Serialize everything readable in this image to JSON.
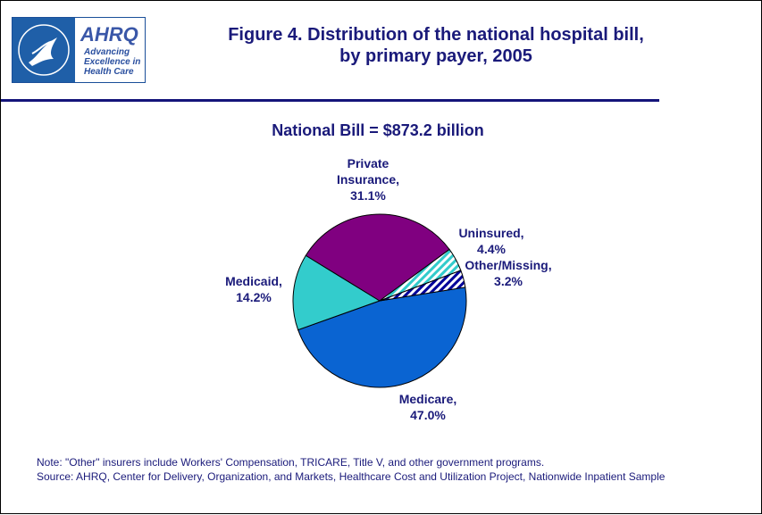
{
  "logo": {
    "name": "AHRQ",
    "tagline": [
      "Advancing",
      "Excellence in",
      "Health Care"
    ]
  },
  "chart_data": {
    "type": "pie",
    "title": [
      "Figure 4. Distribution of the national hospital bill,",
      "by primary payer, 2005"
    ],
    "subtitle": "National Bill = $873.2 billion",
    "categories": [
      "Medicare,",
      "Medicaid,",
      "Private Insurance,",
      "Uninsured,",
      "Other/Missing,"
    ],
    "values": [
      47.0,
      14.2,
      31.1,
      4.4,
      3.2
    ],
    "value_labels": [
      "47.0%",
      "14.2%",
      "31.1%",
      "4.4%",
      "3.2%"
    ],
    "colors": [
      "#0a64d2",
      "#33cccc",
      "#800080",
      "#33cccc",
      "#000099"
    ],
    "hatched": [
      false,
      false,
      false,
      true,
      true
    ],
    "notes": [
      "Note: \"Other\" insurers include Workers' Compensation, TRICARE, Title V, and other government programs.",
      "Source: AHRQ, Center for Delivery, Organization, and Markets, Healthcare Cost and Utilization Project, Nationwide Inpatient Sample"
    ]
  }
}
